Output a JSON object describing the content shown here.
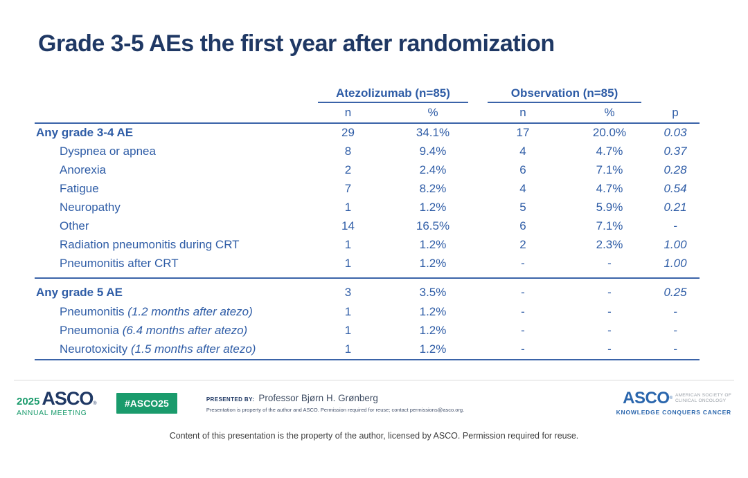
{
  "title": "Grade 3-5 AEs the first year after randomization",
  "table": {
    "group_headers": [
      {
        "name": "Atezolizumab",
        "n": "(n=85)"
      },
      {
        "name": "Observation",
        "n": "(n=85)"
      }
    ],
    "col_headers": [
      "n",
      "%",
      "n",
      "%",
      "p"
    ],
    "sections": [
      {
        "rows": [
          {
            "label": "Any grade 3-4 AE",
            "bold": true,
            "cells": [
              "29",
              "34.1%",
              "17",
              "20.0%",
              "0.03"
            ]
          },
          {
            "label": "Dyspnea or apnea",
            "indent": true,
            "cells": [
              "8",
              "9.4%",
              "4",
              "4.7%",
              "0.37"
            ]
          },
          {
            "label": "Anorexia",
            "indent": true,
            "cells": [
              "2",
              "2.4%",
              "6",
              "7.1%",
              "0.28"
            ]
          },
          {
            "label": "Fatigue",
            "indent": true,
            "cells": [
              "7",
              "8.2%",
              "4",
              "4.7%",
              "0.54"
            ]
          },
          {
            "label": "Neuropathy",
            "indent": true,
            "cells": [
              "1",
              "1.2%",
              "5",
              "5.9%",
              "0.21"
            ]
          },
          {
            "label": "Other",
            "indent": true,
            "cells": [
              "14",
              "16.5%",
              "6",
              "7.1%",
              "-"
            ]
          },
          {
            "label": "Radiation pneumonitis during CRT",
            "indent": true,
            "cells": [
              "1",
              "1.2%",
              "2",
              "2.3%",
              "1.00"
            ]
          },
          {
            "label": "Pneumonitis after CRT",
            "indent": true,
            "cells": [
              "1",
              "1.2%",
              "-",
              "-",
              "1.00"
            ]
          }
        ]
      },
      {
        "rows": [
          {
            "label": "Any grade 5 AE",
            "bold": true,
            "cells": [
              "3",
              "3.5%",
              "-",
              "-",
              "0.25"
            ]
          },
          {
            "label": "Pneumonitis",
            "label_detail": "(1.2 months after atezo)",
            "indent": true,
            "cells": [
              "1",
              "1.2%",
              "-",
              "-",
              "-"
            ]
          },
          {
            "label": "Pneumonia",
            "label_detail": "(6.4 months after atezo)",
            "indent": true,
            "cells": [
              "1",
              "1.2%",
              "-",
              "-",
              "-"
            ]
          },
          {
            "label": "Neurotoxicity",
            "label_detail": "(1.5 months after atezo)",
            "indent": true,
            "cells": [
              "1",
              "1.2%",
              "-",
              "-",
              "-"
            ]
          }
        ]
      }
    ]
  },
  "footer": {
    "year": "2025",
    "asco_wordmark": "ASCO",
    "reg_mark": "®",
    "annual_meeting": "ANNUAL MEETING",
    "hashtag": "#ASCO25",
    "presented_by_label": "PRESENTED BY:",
    "presenter": "Professor Bjørn H. Grønberg",
    "disclaimer": "Presentation is property of the author and ASCO. Permission required for reuse; contact permissions@asco.org.",
    "society_line1": "AMERICAN SOCIETY OF",
    "society_line2": "CLINICAL ONCOLOGY",
    "tagline": "KNOWLEDGE CONQUERS CANCER"
  },
  "caption": "Content of this presentation is the property of the author, licensed by ASCO. Permission required for reuse.",
  "colors": {
    "navy": "#1f3864",
    "blue": "#2e5ca6",
    "line": "#3a63a8",
    "green": "#1a9b6c",
    "ascoblue": "#2a66ad",
    "gray": "#9aa0a8"
  }
}
